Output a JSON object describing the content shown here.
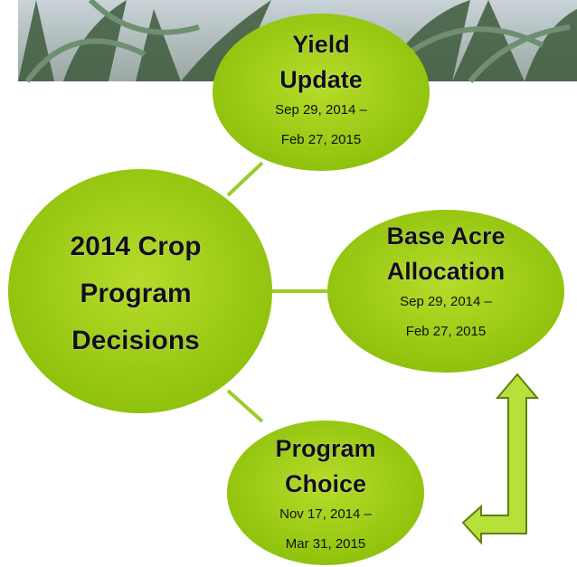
{
  "center": {
    "lines": [
      "2014 Crop",
      "Program",
      "Decisions"
    ]
  },
  "nodes": [
    {
      "title": [
        "Yield",
        "Update"
      ],
      "dates": [
        "Sep 29, 2014 –",
        "Feb 27, 2015"
      ]
    },
    {
      "title": [
        "Base Acre",
        "Allocation"
      ],
      "dates": [
        "Sep 29, 2014 –",
        "Feb 27, 2015"
      ]
    },
    {
      "title": [
        "Program",
        "Choice"
      ],
      "dates": [
        "Nov 17, 2014 –",
        "Mar 31, 2015"
      ]
    }
  ]
}
